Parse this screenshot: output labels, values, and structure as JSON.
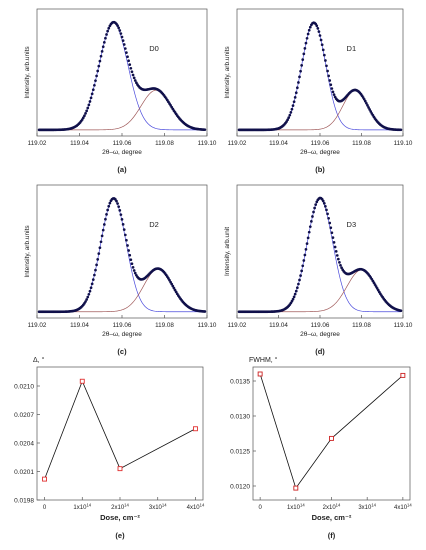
{
  "chart_data": [
    {
      "type": "line",
      "panel_label": "(a)",
      "peak_label": "D0",
      "xlabel": "2θ–ω, degree",
      "ylabel": "Intensity, arb.units",
      "xlim": [
        119.02,
        119.1
      ],
      "xticks": [
        "119.02",
        "119.04",
        "119.06",
        "119.08",
        "119.10"
      ],
      "components": [
        {
          "center": 119.056,
          "width": 0.0068,
          "amplitude": 1.0
        },
        {
          "center": 119.076,
          "width": 0.007,
          "amplitude": 0.37
        }
      ],
      "baseline": 0.02,
      "colors": {
        "data": "#10104a",
        "comp1": "#4a4adc",
        "comp2": "#a05a5a"
      }
    },
    {
      "type": "line",
      "panel_label": "(b)",
      "peak_label": "D1",
      "xlabel": "2θ–ω, degree",
      "ylabel": "Intensity, arb.units",
      "xlim": [
        119.02,
        119.1
      ],
      "xticks": [
        "119.02",
        "119.04",
        "119.06",
        "119.08",
        "119.10"
      ],
      "components": [
        {
          "center": 119.057,
          "width": 0.0058,
          "amplitude": 1.0
        },
        {
          "center": 119.077,
          "width": 0.006,
          "amplitude": 0.37
        }
      ],
      "baseline": 0.02,
      "colors": {
        "data": "#10104a",
        "comp1": "#4a4adc",
        "comp2": "#a05a5a"
      }
    },
    {
      "type": "line",
      "panel_label": "(c)",
      "peak_label": "D2",
      "xlabel": "2θ–ω, degree",
      "ylabel": "Intensity, arb.units",
      "xlim": [
        119.02,
        119.1
      ],
      "xticks": [
        "119.02",
        "119.04",
        "119.06",
        "119.08",
        "119.10"
      ],
      "components": [
        {
          "center": 119.056,
          "width": 0.006,
          "amplitude": 1.0
        },
        {
          "center": 119.077,
          "width": 0.0068,
          "amplitude": 0.38
        }
      ],
      "baseline": 0.02,
      "colors": {
        "data": "#10104a",
        "comp1": "#4a4adc",
        "comp2": "#a05a5a"
      }
    },
    {
      "type": "line",
      "panel_label": "(d)",
      "peak_label": "D3",
      "xlabel": "2θ–ω, degree",
      "ylabel": "Intensity, arb.unit",
      "xlim": [
        119.02,
        119.1
      ],
      "xticks": [
        "119.02",
        "119.04",
        "119.06",
        "119.08",
        "119.10"
      ],
      "components": [
        {
          "center": 119.06,
          "width": 0.0062,
          "amplitude": 1.0
        },
        {
          "center": 119.08,
          "width": 0.007,
          "amplitude": 0.37
        }
      ],
      "baseline": 0.02,
      "colors": {
        "data": "#10104a",
        "comp1": "#4a4adc",
        "comp2": "#a05a5a"
      }
    },
    {
      "type": "scatter",
      "panel_label": "(e)",
      "ylabel": "Δ, °",
      "xlabel": "Dose, cm⁻²",
      "x": [
        0,
        1,
        2,
        4
      ],
      "xticks": [
        {
          "base": "0",
          "exp": ""
        },
        {
          "base": "1x10",
          "exp": "14"
        },
        {
          "base": "2x10",
          "exp": "14"
        },
        {
          "base": "3x10",
          "exp": "14"
        },
        {
          "base": "4x10",
          "exp": "14"
        }
      ],
      "xlim": [
        -0.2,
        4.2
      ],
      "y": [
        0.02002,
        0.02105,
        0.02013,
        0.02055
      ],
      "ylim": [
        0.0198,
        0.0212
      ],
      "yticks": [
        "0.0198",
        "0.0201",
        "0.0204",
        "0.0207",
        "0.0210"
      ],
      "ytick_values": [
        0.0198,
        0.0201,
        0.0204,
        0.0207,
        0.021
      ],
      "colors": {
        "marker": "#e03030",
        "line": "#111111"
      }
    },
    {
      "type": "scatter",
      "panel_label": "(f)",
      "ylabel": "FWHM, °",
      "xlabel": "Dose, cm⁻²",
      "x": [
        0,
        1,
        2,
        4
      ],
      "xticks": [
        {
          "base": "0",
          "exp": ""
        },
        {
          "base": "1x10",
          "exp": "14"
        },
        {
          "base": "2x10",
          "exp": "14"
        },
        {
          "base": "3x10",
          "exp": "14"
        },
        {
          "base": "4x10",
          "exp": "14"
        }
      ],
      "xlim": [
        -0.2,
        4.2
      ],
      "y": [
        0.0136,
        0.01197,
        0.01268,
        0.01358
      ],
      "ylim": [
        0.0118,
        0.0137
      ],
      "yticks": [
        "0.0120",
        "0.0125",
        "0.0130",
        "0.0135"
      ],
      "ytick_values": [
        0.012,
        0.0125,
        0.013,
        0.0135
      ],
      "colors": {
        "marker": "#cc2020",
        "line": "#111111"
      }
    }
  ]
}
